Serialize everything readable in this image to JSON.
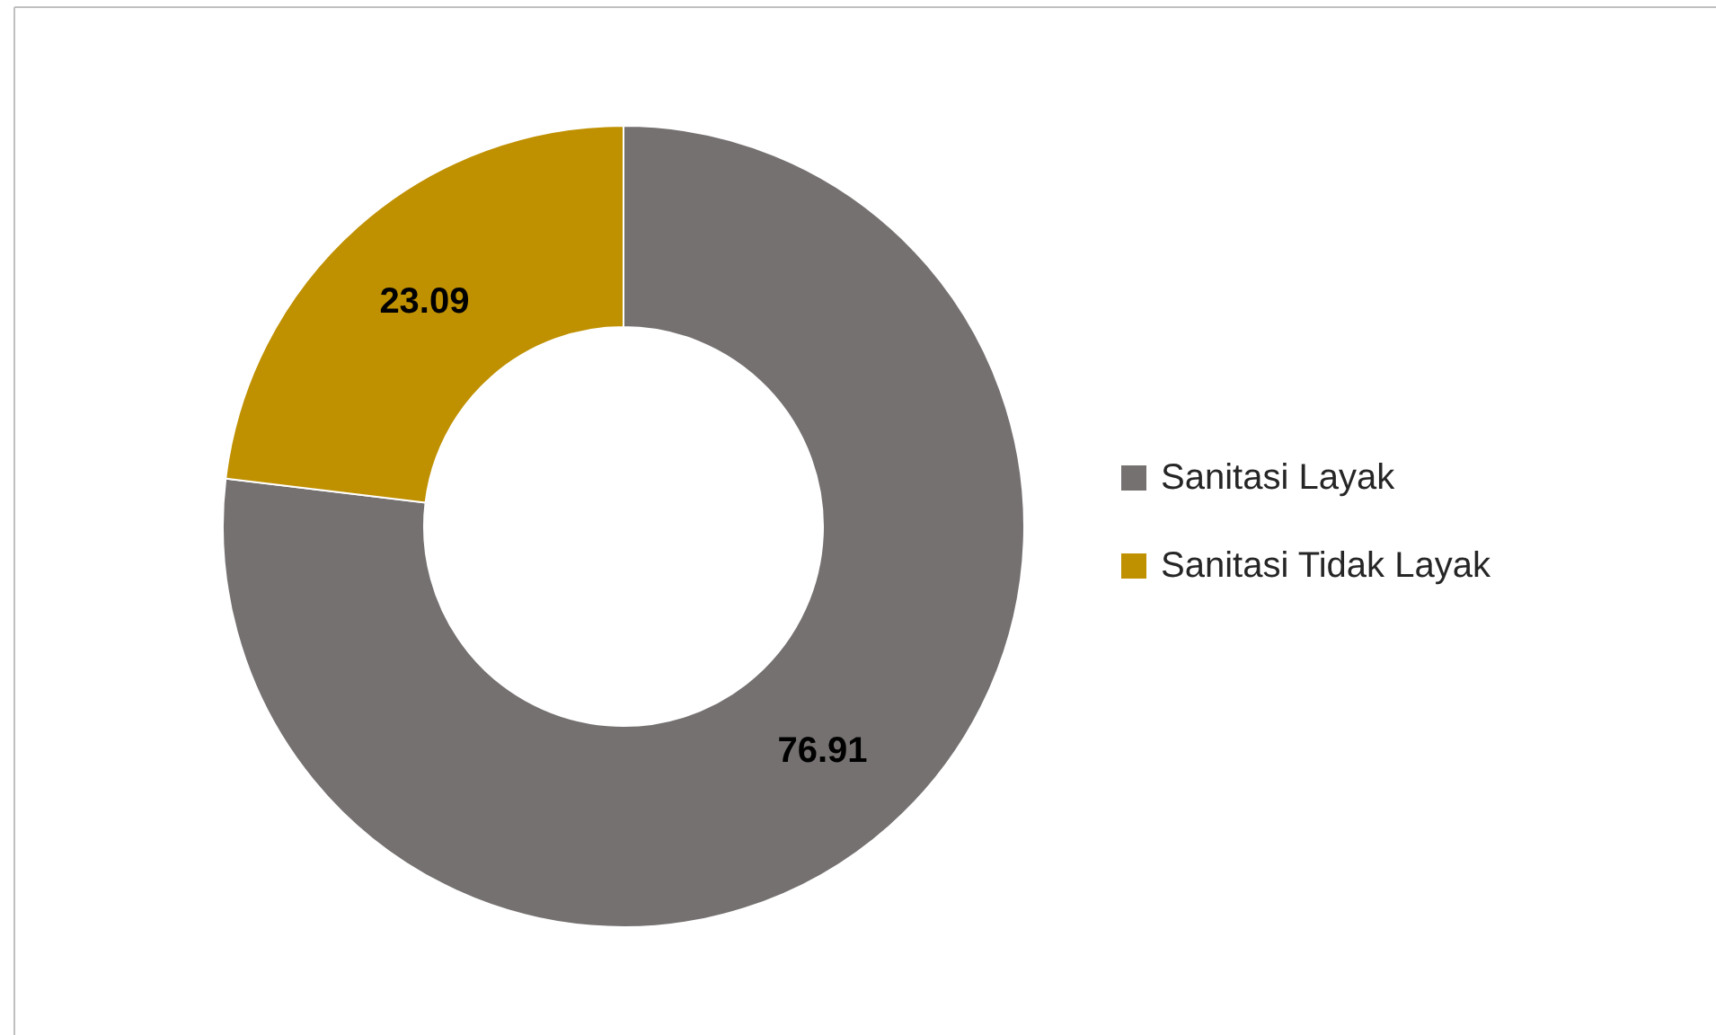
{
  "chart_data": {
    "type": "donut",
    "categories": [
      "Sanitasi Layak",
      "Sanitasi Tidak Layak"
    ],
    "values": [
      76.91,
      23.09
    ],
    "colors": [
      "#767171",
      "#bf9000"
    ],
    "data_labels": true,
    "legend": "right"
  }
}
